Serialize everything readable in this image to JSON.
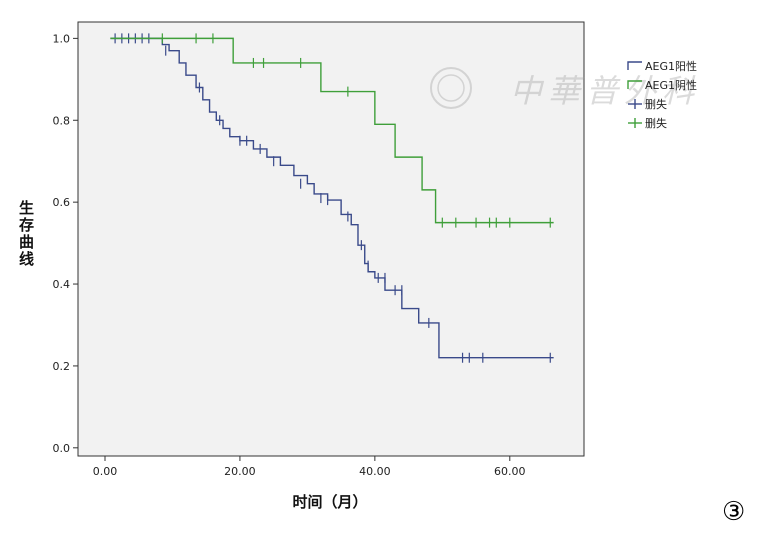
{
  "panel_label": "③",
  "watermark": {
    "text": "中華普外科"
  },
  "chart_data": {
    "type": "line",
    "title": "",
    "xlabel": "时间（月）",
    "ylabel": "生存曲线",
    "xlim": [
      -4,
      71
    ],
    "ylim": [
      -0.02,
      1.04
    ],
    "x_ticks": [
      0,
      20,
      40,
      60
    ],
    "x_tick_labels": [
      "0.00",
      "20.00",
      "40.00",
      "60.00"
    ],
    "y_ticks": [
      0,
      0.2,
      0.4,
      0.6,
      0.8,
      1.0
    ],
    "y_tick_labels": [
      "0.0",
      "0.2",
      "0.4",
      "0.6",
      "0.8",
      "1.0"
    ],
    "grid": false,
    "legend_position": "top-right",
    "legend": [
      {
        "label": "AEG1阳性",
        "kind": "step",
        "color": "#3a4a8a"
      },
      {
        "label": "AEG1阴性",
        "kind": "step",
        "color": "#3f9f3a"
      },
      {
        "label": "删失",
        "kind": "censor",
        "color": "#3a4a8a"
      },
      {
        "label": "删失",
        "kind": "censor",
        "color": "#3f9f3a"
      }
    ],
    "series": [
      {
        "name": "AEG1阳性",
        "color": "#3a4a8a",
        "x": [
          0.8,
          8.5,
          9.5,
          11,
          12,
          13.5,
          14.5,
          15.5,
          16.5,
          17.5,
          18.5,
          20,
          22,
          24,
          26,
          28,
          30,
          31,
          33,
          35,
          36.5,
          37.5,
          38.5,
          39,
          40,
          41.5,
          44,
          46.5,
          49.5,
          66.5
        ],
        "y": [
          1.0,
          0.985,
          0.97,
          0.94,
          0.91,
          0.88,
          0.85,
          0.82,
          0.8,
          0.78,
          0.76,
          0.75,
          0.73,
          0.71,
          0.69,
          0.665,
          0.645,
          0.62,
          0.605,
          0.57,
          0.545,
          0.495,
          0.45,
          0.43,
          0.415,
          0.385,
          0.34,
          0.305,
          0.22,
          0.22
        ],
        "censored": [
          {
            "x": 1.5,
            "y": 1.0
          },
          {
            "x": 2.5,
            "y": 1.0
          },
          {
            "x": 3.5,
            "y": 1.0
          },
          {
            "x": 4.5,
            "y": 1.0
          },
          {
            "x": 5.5,
            "y": 1.0
          },
          {
            "x": 6.5,
            "y": 1.0
          },
          {
            "x": 9,
            "y": 0.97
          },
          {
            "x": 14,
            "y": 0.88
          },
          {
            "x": 17,
            "y": 0.8
          },
          {
            "x": 20,
            "y": 0.75
          },
          {
            "x": 21,
            "y": 0.75
          },
          {
            "x": 23,
            "y": 0.73
          },
          {
            "x": 25,
            "y": 0.7
          },
          {
            "x": 29,
            "y": 0.645
          },
          {
            "x": 32,
            "y": 0.61
          },
          {
            "x": 33,
            "y": 0.605
          },
          {
            "x": 36,
            "y": 0.565
          },
          {
            "x": 38,
            "y": 0.495
          },
          {
            "x": 39,
            "y": 0.445
          },
          {
            "x": 40.5,
            "y": 0.415
          },
          {
            "x": 41.5,
            "y": 0.415
          },
          {
            "x": 43,
            "y": 0.385
          },
          {
            "x": 44,
            "y": 0.385
          },
          {
            "x": 48,
            "y": 0.305
          },
          {
            "x": 53,
            "y": 0.22
          },
          {
            "x": 54,
            "y": 0.22
          },
          {
            "x": 56,
            "y": 0.22
          },
          {
            "x": 66,
            "y": 0.22
          }
        ]
      },
      {
        "name": "AEG1阴性",
        "color": "#3f9f3a",
        "x": [
          0.8,
          19,
          32,
          40,
          43,
          47,
          49,
          66.5
        ],
        "y": [
          1.0,
          0.94,
          0.87,
          0.79,
          0.71,
          0.63,
          0.55,
          0.55
        ],
        "censored": [
          {
            "x": 8.5,
            "y": 1.0
          },
          {
            "x": 13.5,
            "y": 1.0
          },
          {
            "x": 16,
            "y": 1.0
          },
          {
            "x": 22,
            "y": 0.94
          },
          {
            "x": 23.5,
            "y": 0.94
          },
          {
            "x": 29,
            "y": 0.94
          },
          {
            "x": 36,
            "y": 0.87
          },
          {
            "x": 50,
            "y": 0.55
          },
          {
            "x": 52,
            "y": 0.55
          },
          {
            "x": 55,
            "y": 0.55
          },
          {
            "x": 57,
            "y": 0.55
          },
          {
            "x": 58,
            "y": 0.55
          },
          {
            "x": 60,
            "y": 0.55
          },
          {
            "x": 66,
            "y": 0.55
          }
        ]
      }
    ]
  }
}
